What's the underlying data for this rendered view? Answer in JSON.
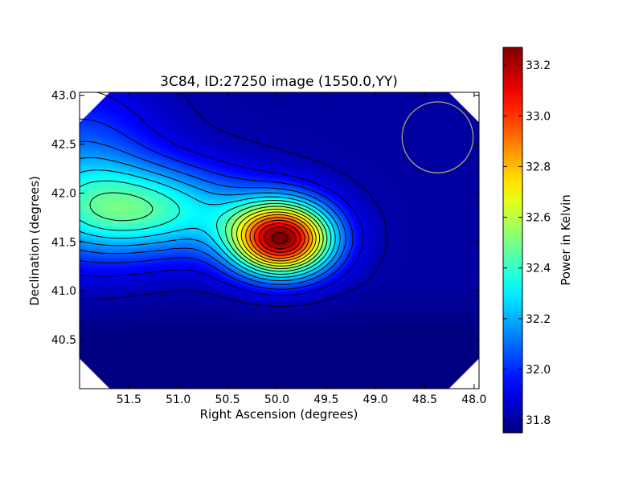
{
  "chart_data": {
    "type": "heatmap",
    "title": "3C84, ID:27250 image (1550.0,YY)",
    "xlabel": "Right Ascension (degrees)",
    "ylabel": "Declination (degrees)",
    "xlim": [
      52.0,
      47.95
    ],
    "ylim": [
      40.0,
      43.03
    ],
    "x_ticks": [
      51.5,
      51.0,
      50.5,
      50.0,
      49.5,
      49.0,
      48.5,
      48.0
    ],
    "x_tick_labels": [
      "51.5",
      "51.0",
      "50.5",
      "50.0",
      "49.5",
      "49.0",
      "48.5",
      "48.0"
    ],
    "y_ticks": [
      40.5,
      41.0,
      41.5,
      42.0,
      42.5,
      43.0
    ],
    "y_tick_labels": [
      "40.5",
      "41.0",
      "41.5",
      "42.0",
      "42.5",
      "43.0"
    ],
    "colorbar": {
      "label": "Power in Kelvin",
      "min": 31.75,
      "max": 33.27,
      "ticks": [
        31.8,
        32.0,
        32.2,
        32.4,
        32.6,
        32.8,
        33.0,
        33.2
      ],
      "tick_labels": [
        "31.8",
        "32.0",
        "32.2",
        "32.4",
        "32.6",
        "32.8",
        "33.0",
        "33.2"
      ],
      "colormap": "jet"
    },
    "peak": {
      "ra": 49.95,
      "dec": 41.53,
      "value": 33.27
    },
    "background_value": 31.8,
    "beam_circle": {
      "ra": 48.37,
      "dec": 42.57,
      "radius_deg": 0.36,
      "color": "#b0a070"
    },
    "contour_color": "#000000"
  }
}
